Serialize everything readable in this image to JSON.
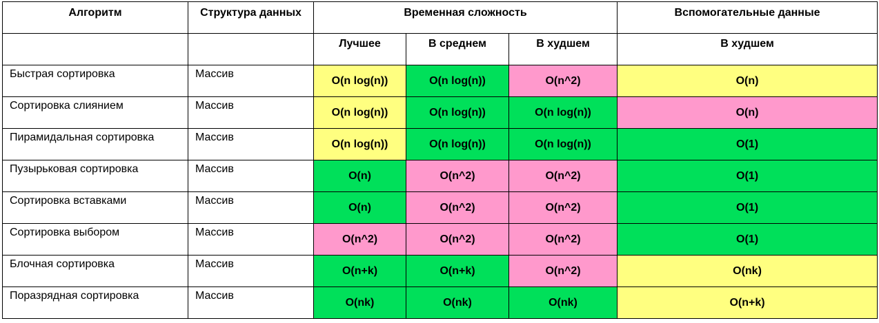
{
  "header": {
    "algorithm": "Алгоритм",
    "structure": "Структура данных",
    "time": "Временная сложность",
    "aux": "Вспомогательные данные",
    "best": "Лучшее",
    "average": "В среднем",
    "worst": "В худшем",
    "aux_worst": "В худшем"
  },
  "colors": {
    "yellow": "#ffff80",
    "green": "#00e05a",
    "pink": "#ff99cc"
  },
  "rows": [
    {
      "name": "Быстрая сортировка",
      "structure": "Массив",
      "best": {
        "v": "O(n log(n))",
        "c": "yellow"
      },
      "average": {
        "v": "O(n log(n))",
        "c": "green"
      },
      "worst": {
        "v": "O(n^2)",
        "c": "pink"
      },
      "aux": {
        "v": "O(n)",
        "c": "yellow"
      }
    },
    {
      "name": "Сортировка слиянием",
      "structure": "Массив",
      "best": {
        "v": "O(n log(n))",
        "c": "yellow"
      },
      "average": {
        "v": "O(n log(n))",
        "c": "green"
      },
      "worst": {
        "v": "O(n log(n))",
        "c": "green"
      },
      "aux": {
        "v": "O(n)",
        "c": "pink"
      }
    },
    {
      "name": "Пирамидальная сортировка",
      "structure": "Массив",
      "best": {
        "v": "O(n log(n))",
        "c": "yellow"
      },
      "average": {
        "v": "O(n log(n))",
        "c": "green"
      },
      "worst": {
        "v": "O(n log(n))",
        "c": "green"
      },
      "aux": {
        "v": "O(1)",
        "c": "green"
      }
    },
    {
      "name": "Пузырьковая сортировка",
      "structure": "Массив",
      "best": {
        "v": "O(n)",
        "c": "green"
      },
      "average": {
        "v": "O(n^2)",
        "c": "pink"
      },
      "worst": {
        "v": "O(n^2)",
        "c": "pink"
      },
      "aux": {
        "v": "O(1)",
        "c": "green"
      }
    },
    {
      "name": "Сортировка вставками",
      "structure": "Массив",
      "best": {
        "v": "O(n)",
        "c": "green"
      },
      "average": {
        "v": "O(n^2)",
        "c": "pink"
      },
      "worst": {
        "v": "O(n^2)",
        "c": "pink"
      },
      "aux": {
        "v": "O(1)",
        "c": "green"
      }
    },
    {
      "name": "Сортировка выбором",
      "structure": "Массив",
      "best": {
        "v": "O(n^2)",
        "c": "pink"
      },
      "average": {
        "v": "O(n^2)",
        "c": "pink"
      },
      "worst": {
        "v": "O(n^2)",
        "c": "pink"
      },
      "aux": {
        "v": "O(1)",
        "c": "green"
      }
    },
    {
      "name": "Блочная сортировка",
      "structure": "Массив",
      "best": {
        "v": "O(n+k)",
        "c": "green"
      },
      "average": {
        "v": "O(n+k)",
        "c": "green"
      },
      "worst": {
        "v": "O(n^2)",
        "c": "pink"
      },
      "aux": {
        "v": "O(nk)",
        "c": "yellow"
      }
    },
    {
      "name": "Поразрядная сортировка",
      "structure": "Массив",
      "best": {
        "v": "O(nk)",
        "c": "green"
      },
      "average": {
        "v": "O(nk)",
        "c": "green"
      },
      "worst": {
        "v": "O(nk)",
        "c": "green"
      },
      "aux": {
        "v": "O(n+k)",
        "c": "yellow"
      }
    }
  ]
}
